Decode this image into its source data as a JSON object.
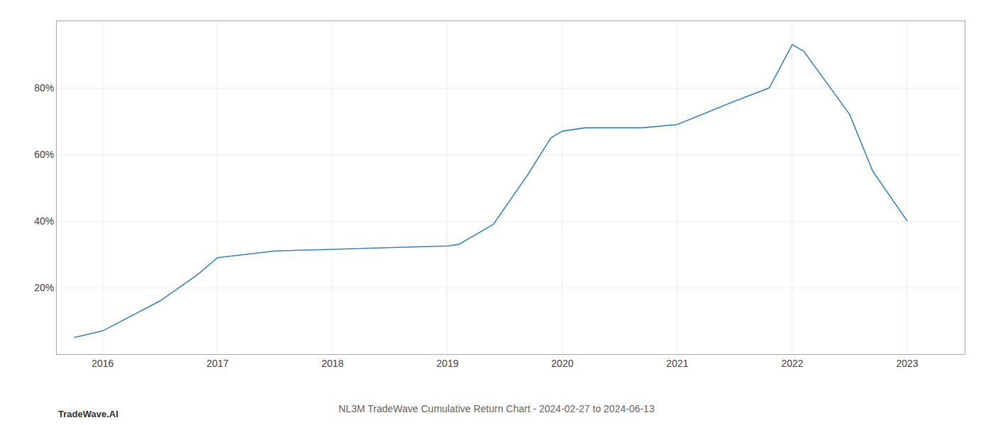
{
  "chart_data": {
    "type": "line",
    "title": "NL3M TradeWave Cumulative Return Chart - 2024-02-27 to 2024-06-13",
    "annotations": [
      "TradeWave.AI"
    ],
    "x": [
      2015.75,
      2016.0,
      2016.5,
      2016.83,
      2017.0,
      2017.25,
      2017.5,
      2018.0,
      2018.5,
      2019.0,
      2019.1,
      2019.4,
      2019.7,
      2019.9,
      2020.0,
      2020.2,
      2020.5,
      2020.7,
      2021.0,
      2021.5,
      2021.8,
      2022.0,
      2022.1,
      2022.5,
      2022.7,
      2023.0
    ],
    "values": [
      5,
      7,
      16,
      24,
      29,
      30,
      31,
      31.5,
      32,
      32.5,
      33,
      39,
      54,
      65,
      67,
      68,
      68,
      68,
      69,
      76,
      80,
      93,
      91,
      72,
      55,
      40
    ],
    "color": "#3a87c8",
    "xlim": [
      2015.6,
      2023.5
    ],
    "xticks": [
      2016,
      2017,
      2018,
      2019,
      2020,
      2021,
      2022,
      2023
    ],
    "ylim": [
      0,
      100
    ],
    "yticks": [
      {
        "value": 20,
        "label": "20%"
      },
      {
        "value": 40,
        "label": "40%"
      },
      {
        "value": 60,
        "label": "60%"
      },
      {
        "value": 80,
        "label": "80%"
      }
    ],
    "grid": true
  }
}
